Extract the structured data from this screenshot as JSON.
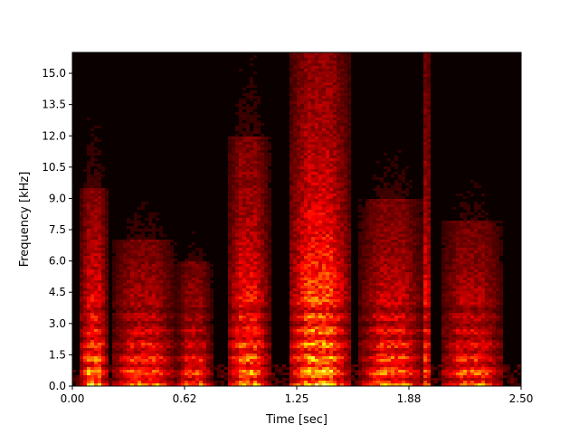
{
  "chart_data": {
    "type": "heatmap",
    "title": "",
    "xlabel": "Time [sec]",
    "ylabel": "Frequency [kHz]",
    "xlim": [
      0,
      2.5
    ],
    "ylim": [
      0,
      16
    ],
    "x_ticks": [
      0.0,
      0.625,
      1.25,
      1.875,
      2.5
    ],
    "x_tick_labels": [
      "0.00",
      "0.62",
      "1.25",
      "1.88",
      "2.50"
    ],
    "y_ticks": [
      0,
      1.5,
      3,
      4.5,
      6,
      7.5,
      9,
      10.5,
      12,
      13.5,
      15
    ],
    "y_tick_labels": [
      "0.0",
      "1.5",
      "3.0",
      "4.5",
      "6.0",
      "7.5",
      "9.0",
      "10.5",
      "12.0",
      "13.5",
      "15.0"
    ],
    "colormap": "hot",
    "grid": false,
    "legend": "none",
    "segments": [
      {
        "t0": 0.04,
        "t1": 0.2,
        "energy": 0.85,
        "reach_khz": 9.5
      },
      {
        "t0": 0.22,
        "t1": 0.58,
        "energy": 0.75,
        "reach_khz": 7.0
      },
      {
        "t0": 0.58,
        "t1": 0.78,
        "energy": 0.7,
        "reach_khz": 6.0
      },
      {
        "t0": 0.86,
        "t1": 1.1,
        "energy": 0.8,
        "reach_khz": 12.0
      },
      {
        "t0": 1.2,
        "t1": 1.55,
        "energy": 0.9,
        "reach_khz": 16.0
      },
      {
        "t0": 1.6,
        "t1": 1.96,
        "energy": 0.75,
        "reach_khz": 9.0
      },
      {
        "t0": 1.94,
        "t1": 2.0,
        "energy": 0.65,
        "reach_khz": 16.0
      },
      {
        "t0": 2.05,
        "t1": 2.4,
        "energy": 0.7,
        "reach_khz": 8.0
      }
    ]
  }
}
